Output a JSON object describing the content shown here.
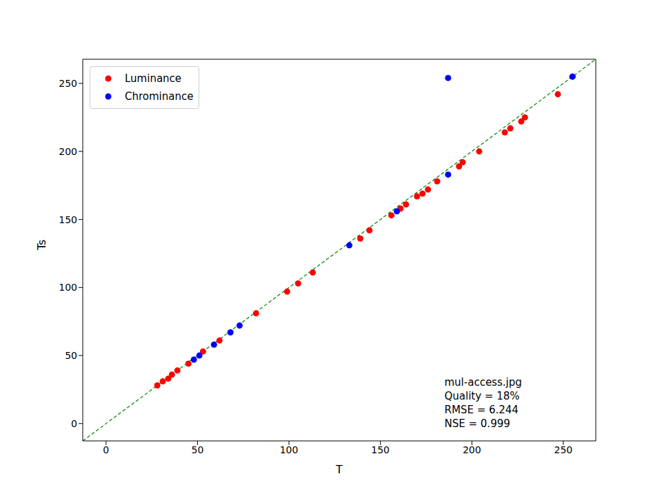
{
  "chart_data": {
    "type": "scatter",
    "x_label": "T",
    "y_label": "Ts",
    "xlim": [
      -12.75,
      267.75
    ],
    "ylim": [
      -12.75,
      267.75
    ],
    "xticks": [
      0,
      50,
      100,
      150,
      200,
      250
    ],
    "yticks": [
      0,
      50,
      100,
      150,
      200,
      250
    ],
    "grid": false,
    "legend": "upper left",
    "annotations": [
      "mul-access.jpg",
      "Quality = 18%",
      "RMSE = 6.244",
      "NSE = 0.999"
    ],
    "series": [
      {
        "name": "Luminance",
        "color": "#ff0000",
        "marker": "circle",
        "x": [
          28,
          31,
          34,
          36,
          39,
          45,
          53,
          62,
          82,
          99,
          105,
          113,
          139,
          144,
          156,
          161,
          164,
          170,
          173,
          176,
          181,
          193,
          195,
          204,
          218,
          221,
          227,
          229,
          247,
          255
        ],
        "values": [
          28,
          31,
          33,
          36,
          39,
          44,
          53,
          61,
          81,
          97,
          103,
          111,
          136,
          142,
          153,
          158,
          161,
          167,
          169,
          172,
          178,
          189,
          192,
          200,
          214,
          217,
          222,
          225,
          242,
          255
        ]
      },
      {
        "name": "Chrominance",
        "color": "#0000ff",
        "marker": "circle",
        "x": [
          48,
          51,
          59,
          68,
          73,
          133,
          159,
          187,
          187,
          255
        ],
        "values": [
          47,
          50,
          58,
          67,
          72,
          131,
          156,
          183,
          254,
          255
        ]
      }
    ]
  }
}
